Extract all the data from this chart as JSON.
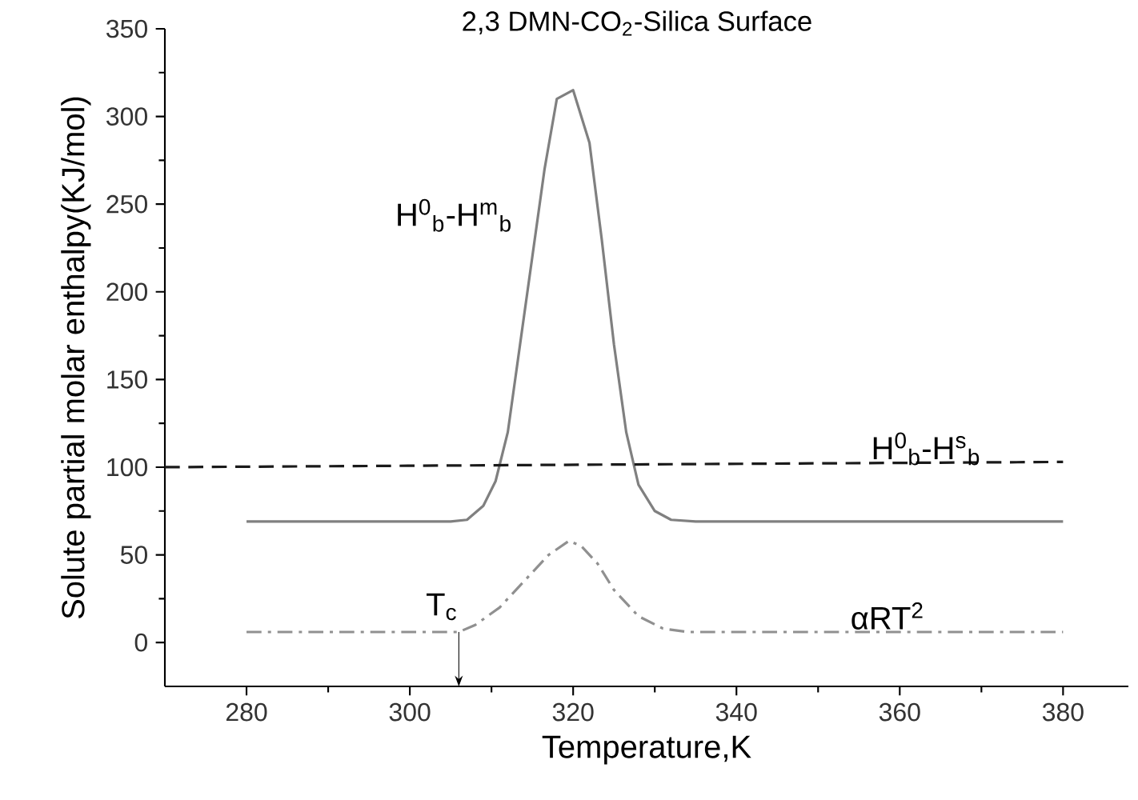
{
  "chart_data": {
    "type": "line",
    "title": "2,3 DMN-CO$_{2}$-Silica Surface",
    "xlabel": "Temperature,K",
    "ylabel": "Solute partial molar enthalpy(KJ/mol)",
    "xlim": [
      270,
      388
    ],
    "ylim": [
      -25,
      350
    ],
    "xticks": [
      280,
      300,
      320,
      340,
      360,
      380
    ],
    "yticks": [
      0,
      50,
      100,
      150,
      200,
      250,
      300,
      350
    ],
    "grid": false,
    "series": [
      {
        "name": "H$^{0}$$_{b}$-H$^{m}$$_{b}$",
        "color": "#808080",
        "line_style": "solid",
        "x": [
          280,
          290,
          300,
          305,
          307,
          309,
          310.5,
          312,
          313.5,
          315,
          316.5,
          318,
          320,
          322,
          323.5,
          325,
          326.5,
          328,
          330,
          332,
          335,
          350,
          380
        ],
        "values": [
          69,
          69,
          69,
          69,
          70,
          78,
          92,
          120,
          170,
          220,
          270,
          310,
          315,
          285,
          230,
          170,
          120,
          90,
          75,
          70,
          69,
          69,
          69
        ]
      },
      {
        "name": "H$^{0}$$_{b}$-H$^{s}$$_{b}$",
        "color": "#1a1a1a",
        "line_style": "dashed",
        "x": [
          270,
          380
        ],
        "values": [
          100,
          103
        ]
      },
      {
        "name": "αRT$^{2}$",
        "color": "#909090",
        "line_style": "dashdot",
        "x": [
          280,
          290,
          300,
          306,
          308,
          311,
          314,
          317,
          319.5,
          321,
          323,
          325,
          328,
          331,
          334,
          350,
          380
        ],
        "values": [
          6,
          6,
          6,
          6,
          10,
          20,
          35,
          50,
          58,
          55,
          45,
          30,
          15,
          8,
          6,
          6,
          6
        ]
      }
    ],
    "annotations": [
      {
        "text": "T$_{c}$",
        "x": 306,
        "y": 6
      }
    ]
  }
}
